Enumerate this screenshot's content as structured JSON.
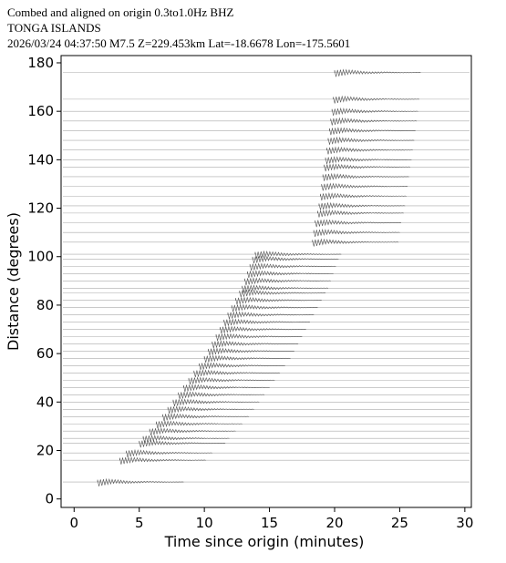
{
  "chart_data": {
    "type": "record-section",
    "title_lines": [
      "Combed and aligned on origin  0.3to1.0Hz  BHZ",
      "TONGA ISLANDS",
      "2026/03/24  04:37:50  M7.5  Z=229.453km Lat=-18.6678 Lon=-175.5601"
    ],
    "xlabel": "Time since origin (minutes)",
    "ylabel": "Distance (degrees)",
    "xlim": [
      -1,
      30.5
    ],
    "ylim": [
      -3.5,
      183
    ],
    "xticks": [
      0,
      5,
      10,
      15,
      20,
      25,
      30
    ],
    "yticks": [
      0,
      20,
      40,
      60,
      80,
      100,
      120,
      140,
      160,
      180
    ],
    "color": "#555555",
    "distances": [
      7,
      16,
      19,
      23,
      25,
      28,
      31,
      34,
      37,
      40,
      43,
      46,
      49,
      52,
      55,
      58,
      61,
      64,
      67,
      70,
      73,
      76,
      79,
      82,
      85,
      87,
      90,
      93,
      96,
      99,
      101,
      106,
      110,
      114,
      118,
      121,
      125,
      129,
      133,
      137,
      140,
      144,
      148,
      152,
      156,
      160,
      165,
      176
    ],
    "arrival_times": [
      1.8,
      3.5,
      4,
      5,
      5.3,
      5.8,
      6.3,
      6.8,
      7.2,
      7.6,
      8,
      8.4,
      8.8,
      9.2,
      9.6,
      10,
      10.3,
      10.6,
      10.9,
      11.2,
      11.5,
      11.8,
      12.1,
      12.4,
      12.7,
      12.9,
      13.1,
      13.3,
      13.5,
      13.7,
      13.9,
      18.3,
      18.4,
      18.5,
      18.7,
      18.8,
      18.9,
      19,
      19.1,
      19.2,
      19.3,
      19.4,
      19.5,
      19.6,
      19.7,
      19.8,
      19.9,
      20
    ]
  }
}
